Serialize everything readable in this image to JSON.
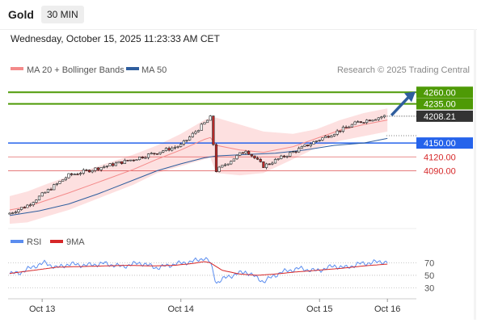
{
  "header": {
    "symbol": "Gold",
    "timeframe": "30 MIN",
    "datetime": "Wednesday, October 15, 2025 11:23:33 AM CET"
  },
  "legend": {
    "items": [
      {
        "label": "MA 20 + Bollinger Bands",
        "color": "#f48a8a"
      },
      {
        "label": "MA 50",
        "color": "#2f5e9e"
      }
    ],
    "credit": "Research © 2025 Trading Central"
  },
  "colors": {
    "bull": "#ffffff",
    "bear": "#c22a2a",
    "wick": "#222222",
    "band": "#fde0e0",
    "ma20": "#f48a8a",
    "ma50": "#2f5e9e",
    "green": "#4e9a06",
    "blue": "#2563eb",
    "red": "#d62728",
    "arrow": "#2f5e9e",
    "rsi": "#5b8def",
    "rsi_ma": "#d62728"
  },
  "chart_data": [
    {
      "type": "candlestick",
      "x": [
        "Oct 13",
        "Oct 14",
        "Oct 15",
        "Oct 16"
      ],
      "ylim": [
        3970,
        4285
      ],
      "candles": {
        "segments": [
          {
            "from": 0,
            "to": 6,
            "start": 3998,
            "end": 4015
          },
          {
            "from": 6,
            "to": 20,
            "start": 4015,
            "end": 4080
          },
          {
            "from": 20,
            "to": 42,
            "start": 4080,
            "end": 4115
          },
          {
            "from": 42,
            "to": 58,
            "start": 4115,
            "end": 4145
          },
          {
            "from": 58,
            "to": 68,
            "start": 4145,
            "end": 4205
          },
          {
            "from": 68,
            "to": 70,
            "start": 4205,
            "end": 4090
          },
          {
            "from": 70,
            "to": 80,
            "start": 4090,
            "end": 4135
          },
          {
            "from": 80,
            "to": 86,
            "start": 4135,
            "end": 4100
          },
          {
            "from": 86,
            "to": 104,
            "start": 4100,
            "end": 4155
          },
          {
            "from": 104,
            "to": 118,
            "start": 4155,
            "end": 4195
          },
          {
            "from": 118,
            "to": 128,
            "start": 4195,
            "end": 4210
          }
        ],
        "count": 128
      },
      "bollinger": {
        "x": [
          0,
          6,
          12,
          20,
          30,
          42,
          50,
          58,
          66,
          68,
          70,
          78,
          86,
          96,
          104,
          112,
          120,
          128
        ],
        "upper": [
          4035,
          4045,
          4060,
          4078,
          4100,
          4125,
          4145,
          4170,
          4200,
          4205,
          4205,
          4190,
          4175,
          4170,
          4180,
          4200,
          4215,
          4225
        ],
        "lower": [
          3975,
          3978,
          3990,
          4005,
          4030,
          4060,
          4085,
          4100,
          4115,
          4118,
          4085,
          4080,
          4085,
          4115,
          4140,
          4155,
          4165,
          4175
        ],
        "ma20": [
          4005,
          4012,
          4025,
          4042,
          4065,
          4093,
          4115,
          4135,
          4158,
          4162,
          4145,
          4135,
          4130,
          4142,
          4160,
          4178,
          4190,
          4200
        ]
      },
      "ma50": {
        "x": [
          0,
          10,
          20,
          30,
          42,
          50,
          58,
          66,
          70,
          80,
          90,
          100,
          110,
          120,
          128
        ],
        "y": [
          3993,
          4003,
          4018,
          4040,
          4070,
          4090,
          4105,
          4118,
          4122,
          4125,
          4128,
          4135,
          4145,
          4150,
          4160
        ]
      },
      "levels": [
        {
          "value": 4260.0,
          "label": "4260.00",
          "color": "#4e9a06",
          "style": "solid-tag"
        },
        {
          "value": 4235.0,
          "label": "4235.00",
          "color": "#4e9a06",
          "style": "solid-tag"
        },
        {
          "value": 4208.21,
          "label": "4208.21",
          "color": "#333333",
          "style": "dotted-tag"
        },
        {
          "value": 4150.0,
          "label": "4150.00",
          "color": "#2563eb",
          "style": "solid-tag"
        },
        {
          "value": 4120.0,
          "label": "4120.00",
          "color": "#d62728",
          "style": "text"
        },
        {
          "value": 4090.0,
          "label": "4090.00",
          "color": "#d62728",
          "style": "text"
        }
      ],
      "arrow": {
        "from": {
          "x": 128,
          "y": 4210
        },
        "to": {
          "x": 140,
          "y": 4258
        }
      }
    },
    {
      "type": "line",
      "series": [
        {
          "name": "RSI",
          "color": "#5b8def",
          "x": [
            0,
            4,
            8,
            12,
            16,
            20,
            26,
            32,
            38,
            44,
            50,
            56,
            62,
            66,
            68,
            70,
            74,
            80,
            86,
            92,
            98,
            104,
            110,
            114,
            118,
            122,
            126,
            128
          ],
          "y": [
            52,
            55,
            64,
            70,
            62,
            68,
            66,
            69,
            64,
            70,
            62,
            68,
            72,
            78,
            70,
            38,
            48,
            56,
            40,
            55,
            61,
            57,
            65,
            62,
            68,
            70,
            72,
            71
          ]
        },
        {
          "name": "9MA",
          "color": "#d62728",
          "x": [
            0,
            8,
            16,
            24,
            32,
            40,
            48,
            56,
            62,
            66,
            68,
            72,
            78,
            84,
            90,
            96,
            104,
            112,
            120,
            128
          ],
          "y": [
            53,
            58,
            63,
            64,
            65,
            66,
            65,
            66,
            69,
            72,
            70,
            58,
            52,
            50,
            52,
            55,
            58,
            61,
            65,
            68
          ]
        }
      ],
      "ylim": [
        15,
        90
      ],
      "ticks": [
        "70",
        "50",
        "30"
      ],
      "tick_values": [
        70,
        50,
        30
      ]
    }
  ]
}
